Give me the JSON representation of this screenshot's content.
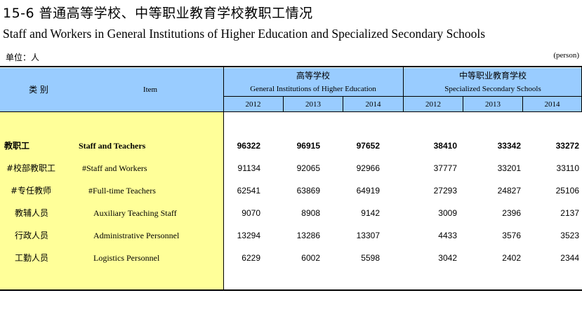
{
  "title": {
    "cn": "15-6   普通高等学校、中等职业教育学校教职工情况",
    "en": "Staff and Workers in General Institutions of Higher Education and Specialized Secondary Schools"
  },
  "unit": {
    "cn": "单位：人",
    "en": "(person)"
  },
  "header": {
    "category_cn": "类 别",
    "item_en": "Item",
    "group1_cn": "高等学校",
    "group1_en": "General Institutions of Higher Education",
    "group2_cn": "中等职业教育学校",
    "group2_en": "Specialized Secondary Schools",
    "years": [
      "2012",
      "2013",
      "2014",
      "2012",
      "2013",
      "2014"
    ]
  },
  "rows": [
    {
      "cn": "教职工",
      "en": "Staff and Teachers",
      "values": [
        "96322",
        "96915",
        "97652",
        "38410",
        "33342",
        "33272"
      ],
      "bold": true
    },
    {
      "cn": "#校部教职工",
      "en": "#Staff and Workers",
      "values": [
        "91134",
        "92065",
        "92966",
        "37777",
        "33201",
        "33110"
      ]
    },
    {
      "cn": "#专任教师",
      "en": "#Full-time Teachers",
      "values": [
        "62541",
        "63869",
        "64919",
        "27293",
        "24827",
        "25106"
      ]
    },
    {
      "cn": "教辅人员",
      "en": "Auxiliary Teaching Staff",
      "values": [
        "9070",
        "8908",
        "9142",
        "3009",
        "2396",
        "2137"
      ]
    },
    {
      "cn": "行政人员",
      "en": "Administrative Personnel",
      "values": [
        "13294",
        "13286",
        "13307",
        "4433",
        "3576",
        "3523"
      ]
    },
    {
      "cn": "工勤人员",
      "en": "Logistics Personnel",
      "values": [
        "6229",
        "6002",
        "5598",
        "3042",
        "2402",
        "2344"
      ]
    }
  ],
  "colors": {
    "header_bg": "#99ccff",
    "stub_bg": "#ffff99"
  }
}
